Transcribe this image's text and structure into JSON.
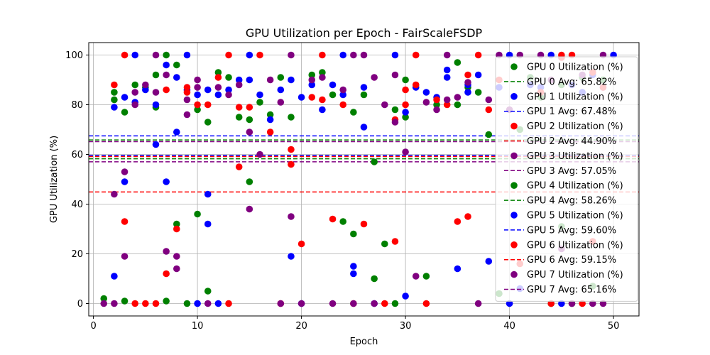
{
  "chart_data": {
    "type": "scatter",
    "title": "GPU Utilization per Epoch - FairScaleFSDP",
    "xlabel": "Epoch",
    "ylabel": "GPU Utilization (%)",
    "xlim": [
      -0.45,
      52.45
    ],
    "ylim": [
      -5,
      105
    ],
    "xticks": [
      0,
      10,
      20,
      30,
      40,
      50
    ],
    "yticks": [
      0,
      20,
      40,
      60,
      80,
      100
    ],
    "grid": true,
    "legend_position": "right",
    "series": [
      {
        "name": "GPU 0 Utilization (%)",
        "avg_name": "GPU 0 Avg: 65.82%",
        "avg": 65.82,
        "color": "#008000",
        "points": [
          [
            1,
            2
          ],
          [
            2,
            85
          ],
          [
            2,
            82
          ],
          [
            3,
            77
          ],
          [
            3,
            1
          ],
          [
            4,
            88
          ],
          [
            5,
            87
          ],
          [
            6,
            79
          ],
          [
            6,
            92
          ],
          [
            7,
            100
          ],
          [
            7,
            1
          ],
          [
            8,
            96
          ],
          [
            8,
            32
          ],
          [
            9,
            0
          ],
          [
            10,
            78
          ],
          [
            10,
            36
          ],
          [
            11,
            73
          ],
          [
            11,
            5
          ],
          [
            12,
            93
          ],
          [
            13,
            91
          ],
          [
            14,
            75
          ],
          [
            15,
            74
          ],
          [
            15,
            49
          ],
          [
            16,
            81
          ],
          [
            17,
            76
          ],
          [
            18,
            91
          ],
          [
            19,
            75
          ],
          [
            21,
            92
          ],
          [
            22,
            93
          ],
          [
            23,
            84
          ],
          [
            24,
            33
          ],
          [
            25,
            77
          ],
          [
            25,
            28
          ],
          [
            26,
            84
          ],
          [
            27,
            57
          ],
          [
            27,
            10
          ],
          [
            28,
            24
          ],
          [
            29,
            78
          ],
          [
            29,
            0
          ],
          [
            30,
            90
          ],
          [
            30,
            75
          ],
          [
            32,
            11
          ],
          [
            33,
            80
          ],
          [
            35,
            97
          ],
          [
            35,
            80
          ],
          [
            36,
            87
          ],
          [
            37,
            85
          ],
          [
            38,
            68
          ],
          [
            39,
            4
          ],
          [
            41,
            70
          ],
          [
            42,
            91
          ],
          [
            43,
            83
          ],
          [
            44,
            0
          ],
          [
            45,
            88
          ],
          [
            45,
            31
          ],
          [
            46,
            0
          ],
          [
            47,
            91
          ],
          [
            48,
            7
          ],
          [
            49,
            90
          ]
        ]
      },
      {
        "name": "GPU 1 Utilization (%)",
        "avg_name": "GPU 1 Avg: 67.48%",
        "avg": 67.48,
        "color": "#0000ff",
        "points": [
          [
            2,
            79
          ],
          [
            2,
            11
          ],
          [
            3,
            83
          ],
          [
            3,
            49
          ],
          [
            4,
            100
          ],
          [
            4,
            81
          ],
          [
            5,
            86
          ],
          [
            6,
            80
          ],
          [
            6,
            64
          ],
          [
            7,
            96
          ],
          [
            7,
            49
          ],
          [
            8,
            91
          ],
          [
            8,
            69
          ],
          [
            9,
            100
          ],
          [
            9,
            86
          ],
          [
            10,
            84
          ],
          [
            10,
            0
          ],
          [
            11,
            86
          ],
          [
            11,
            44
          ],
          [
            11,
            32
          ],
          [
            12,
            84
          ],
          [
            12,
            0
          ],
          [
            13,
            86
          ],
          [
            14,
            90
          ],
          [
            15,
            100
          ],
          [
            15,
            90
          ],
          [
            16,
            84
          ],
          [
            17,
            74
          ],
          [
            18,
            86
          ],
          [
            19,
            90
          ],
          [
            19,
            19
          ],
          [
            20,
            83
          ],
          [
            20,
            0
          ],
          [
            21,
            88
          ],
          [
            22,
            78
          ],
          [
            23,
            88
          ],
          [
            24,
            100
          ],
          [
            24,
            84
          ],
          [
            25,
            15
          ],
          [
            25,
            12
          ],
          [
            26,
            87
          ],
          [
            26,
            71
          ],
          [
            27,
            0
          ],
          [
            29,
            100
          ],
          [
            30,
            77
          ],
          [
            30,
            3
          ],
          [
            31,
            87
          ],
          [
            32,
            85
          ],
          [
            33,
            83
          ],
          [
            34,
            94
          ],
          [
            34,
            91
          ],
          [
            35,
            14
          ],
          [
            36,
            88
          ],
          [
            36,
            85
          ],
          [
            37,
            92
          ],
          [
            38,
            17
          ],
          [
            39,
            87
          ],
          [
            40,
            100
          ],
          [
            40,
            0
          ],
          [
            41,
            6
          ],
          [
            42,
            88
          ],
          [
            43,
            87
          ],
          [
            44,
            100
          ],
          [
            45,
            0
          ],
          [
            46,
            88
          ],
          [
            47,
            85
          ],
          [
            48,
            92
          ],
          [
            49,
            87
          ],
          [
            50,
            100
          ]
        ]
      },
      {
        "name": "GPU 2 Utilization (%)",
        "avg_name": "GPU 2 Avg: 44.90%",
        "avg": 44.9,
        "color": "#ff0000",
        "points": [
          [
            2,
            88
          ],
          [
            3,
            100
          ],
          [
            3,
            33
          ],
          [
            4,
            0
          ],
          [
            5,
            0
          ],
          [
            6,
            0
          ],
          [
            7,
            86
          ],
          [
            7,
            12
          ],
          [
            8,
            30
          ],
          [
            9,
            87
          ],
          [
            9,
            85
          ],
          [
            10,
            80
          ],
          [
            11,
            80
          ],
          [
            12,
            91
          ],
          [
            13,
            100
          ],
          [
            13,
            0
          ],
          [
            14,
            79
          ],
          [
            14,
            55
          ],
          [
            15,
            79
          ],
          [
            16,
            100
          ],
          [
            17,
            69
          ],
          [
            18,
            0
          ],
          [
            19,
            62
          ],
          [
            19,
            56
          ],
          [
            20,
            24
          ],
          [
            21,
            83
          ],
          [
            22,
            100
          ],
          [
            22,
            82
          ],
          [
            23,
            34
          ],
          [
            24,
            80
          ],
          [
            25,
            0
          ],
          [
            26,
            32
          ],
          [
            28,
            0
          ],
          [
            29,
            74
          ],
          [
            29,
            25
          ],
          [
            30,
            86
          ],
          [
            30,
            80
          ],
          [
            31,
            100
          ],
          [
            31,
            88
          ],
          [
            32,
            0
          ],
          [
            33,
            82
          ],
          [
            34,
            80
          ],
          [
            35,
            33
          ],
          [
            36,
            92
          ],
          [
            36,
            35
          ],
          [
            37,
            100
          ],
          [
            38,
            78
          ],
          [
            39,
            90
          ],
          [
            41,
            16
          ],
          [
            43,
            85
          ],
          [
            44,
            0
          ],
          [
            45,
            100
          ],
          [
            45,
            99
          ],
          [
            46,
            100
          ],
          [
            47,
            0
          ],
          [
            48,
            93
          ],
          [
            48,
            25
          ],
          [
            49,
            87
          ]
        ]
      },
      {
        "name": "GPU 3 Utilization (%)",
        "avg_name": "GPU 3 Avg: 57.05%",
        "avg": 57.05,
        "color": "#800080",
        "points": [
          [
            1,
            0
          ],
          [
            2,
            44
          ],
          [
            2,
            0
          ],
          [
            3,
            53
          ],
          [
            3,
            19
          ],
          [
            4,
            85
          ],
          [
            4,
            80
          ],
          [
            5,
            88
          ],
          [
            6,
            100
          ],
          [
            6,
            85
          ],
          [
            7,
            92
          ],
          [
            7,
            21
          ],
          [
            8,
            19
          ],
          [
            8,
            14
          ],
          [
            9,
            76
          ],
          [
            9,
            82
          ],
          [
            10,
            90
          ],
          [
            10,
            87
          ],
          [
            11,
            0
          ],
          [
            12,
            87
          ],
          [
            13,
            84
          ],
          [
            14,
            88
          ],
          [
            15,
            69
          ],
          [
            15,
            38
          ],
          [
            16,
            60
          ],
          [
            17,
            90
          ],
          [
            18,
            81
          ],
          [
            18,
            0
          ],
          [
            19,
            100
          ],
          [
            19,
            35
          ],
          [
            20,
            0
          ],
          [
            21,
            90
          ],
          [
            22,
            91
          ],
          [
            23,
            0
          ],
          [
            24,
            86
          ],
          [
            25,
            100
          ],
          [
            25,
            0
          ],
          [
            26,
            100
          ],
          [
            27,
            91
          ],
          [
            27,
            0
          ],
          [
            28,
            80
          ],
          [
            29,
            92
          ],
          [
            29,
            73
          ],
          [
            30,
            61
          ],
          [
            31,
            11
          ],
          [
            32,
            81
          ],
          [
            33,
            78
          ],
          [
            34,
            100
          ],
          [
            34,
            82
          ],
          [
            35,
            83
          ],
          [
            36,
            89
          ],
          [
            37,
            0
          ],
          [
            38,
            82
          ],
          [
            39,
            100
          ],
          [
            40,
            78
          ],
          [
            41,
            100
          ],
          [
            43,
            100
          ],
          [
            44,
            90
          ],
          [
            45,
            22
          ],
          [
            46,
            0
          ],
          [
            47,
            92
          ],
          [
            48,
            0
          ],
          [
            49,
            100
          ],
          [
            49,
            0
          ]
        ]
      }
    ],
    "legend": [
      {
        "label": "GPU 0 Utilization (%)",
        "kind": "marker",
        "color": "#008000"
      },
      {
        "label": "GPU 0 Avg: 65.82%",
        "kind": "line",
        "color": "#008000"
      },
      {
        "label": "GPU 1 Utilization (%)",
        "kind": "marker",
        "color": "#0000ff"
      },
      {
        "label": "GPU 1 Avg: 67.48%",
        "kind": "line",
        "color": "#0000ff"
      },
      {
        "label": "GPU 2 Utilization (%)",
        "kind": "marker",
        "color": "#ff0000"
      },
      {
        "label": "GPU 2 Avg: 44.90%",
        "kind": "line",
        "color": "#ff0000"
      },
      {
        "label": "GPU 3 Utilization (%)",
        "kind": "marker",
        "color": "#800080"
      },
      {
        "label": "GPU 3 Avg: 57.05%",
        "kind": "line",
        "color": "#800080"
      },
      {
        "label": "GPU 4 Utilization (%)",
        "kind": "marker",
        "color": "#008000"
      },
      {
        "label": "GPU 4 Avg: 58.26%",
        "kind": "line",
        "color": "#008000"
      },
      {
        "label": "GPU 5 Utilization (%)",
        "kind": "marker",
        "color": "#0000ff"
      },
      {
        "label": "GPU 5 Avg: 59.60%",
        "kind": "line",
        "color": "#0000ff"
      },
      {
        "label": "GPU 6 Utilization (%)",
        "kind": "marker",
        "color": "#ff0000"
      },
      {
        "label": "GPU 6 Avg: 59.15%",
        "kind": "line",
        "color": "#ff0000"
      },
      {
        "label": "GPU 7 Utilization (%)",
        "kind": "marker",
        "color": "#800080"
      },
      {
        "label": "GPU 7 Avg: 65.16%",
        "kind": "line",
        "color": "#800080"
      }
    ],
    "avg_lines": [
      {
        "value": 65.82,
        "color": "#008000"
      },
      {
        "value": 67.48,
        "color": "#0000ff"
      },
      {
        "value": 44.9,
        "color": "#ff0000"
      },
      {
        "value": 57.05,
        "color": "#800080"
      },
      {
        "value": 58.26,
        "color": "#008000"
      },
      {
        "value": 59.6,
        "color": "#0000ff"
      },
      {
        "value": 59.15,
        "color": "#ff0000"
      },
      {
        "value": 65.16,
        "color": "#800080"
      }
    ]
  }
}
